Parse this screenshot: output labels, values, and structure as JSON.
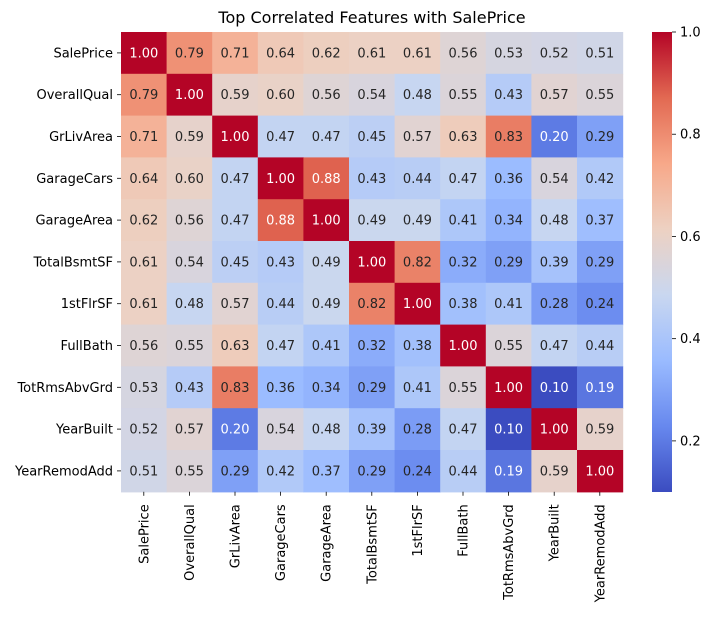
{
  "chart_data": {
    "type": "heatmap",
    "title": "Top Correlated Features with SalePrice",
    "xlabel": "",
    "ylabel": "",
    "x_categories": [
      "SalePrice",
      "OverallQual",
      "GrLivArea",
      "GarageCars",
      "GarageArea",
      "TotalBsmtSF",
      "1stFlrSF",
      "FullBath",
      "TotRmsAbvGrd",
      "YearBuilt",
      "YearRemodAdd"
    ],
    "y_categories": [
      "SalePrice",
      "OverallQual",
      "GrLivArea",
      "GarageCars",
      "GarageArea",
      "TotalBsmtSF",
      "1stFlrSF",
      "FullBath",
      "TotRmsAbvGrd",
      "YearBuilt",
      "YearRemodAdd"
    ],
    "values": [
      [
        1.0,
        0.79,
        0.71,
        0.64,
        0.62,
        0.61,
        0.61,
        0.56,
        0.53,
        0.52,
        0.51
      ],
      [
        0.79,
        1.0,
        0.59,
        0.6,
        0.56,
        0.54,
        0.48,
        0.55,
        0.43,
        0.57,
        0.55
      ],
      [
        0.71,
        0.59,
        1.0,
        0.47,
        0.47,
        0.45,
        0.57,
        0.63,
        0.83,
        0.2,
        0.29
      ],
      [
        0.64,
        0.6,
        0.47,
        1.0,
        0.88,
        0.43,
        0.44,
        0.47,
        0.36,
        0.54,
        0.42
      ],
      [
        0.62,
        0.56,
        0.47,
        0.88,
        1.0,
        0.49,
        0.49,
        0.41,
        0.34,
        0.48,
        0.37
      ],
      [
        0.61,
        0.54,
        0.45,
        0.43,
        0.49,
        1.0,
        0.82,
        0.32,
        0.29,
        0.39,
        0.29
      ],
      [
        0.61,
        0.48,
        0.57,
        0.44,
        0.49,
        0.82,
        1.0,
        0.38,
        0.41,
        0.28,
        0.24
      ],
      [
        0.56,
        0.55,
        0.63,
        0.47,
        0.41,
        0.32,
        0.38,
        1.0,
        0.55,
        0.47,
        0.44
      ],
      [
        0.53,
        0.43,
        0.83,
        0.36,
        0.34,
        0.29,
        0.41,
        0.55,
        1.0,
        0.1,
        0.19
      ],
      [
        0.52,
        0.57,
        0.2,
        0.54,
        0.48,
        0.39,
        0.28,
        0.47,
        0.1,
        1.0,
        0.59
      ],
      [
        0.51,
        0.55,
        0.29,
        0.42,
        0.37,
        0.29,
        0.24,
        0.44,
        0.19,
        0.59,
        1.0
      ]
    ],
    "value_format": "0.00",
    "colormap": "coolwarm",
    "colormap_stops": [
      "#3b4cc0",
      "#6788ee",
      "#9abbff",
      "#c9d7f0",
      "#edd1c2",
      "#f7a889",
      "#e26952",
      "#b40426"
    ],
    "vmin": 0.1,
    "vmax": 1.0,
    "colorbar_ticks": [
      "0.2",
      "0.4",
      "0.6",
      "0.8",
      "1.0"
    ],
    "annotation_colors": {
      "dark": "#262626",
      "light": "#ffffff"
    },
    "grid": false,
    "legend": "colorbar-right"
  }
}
